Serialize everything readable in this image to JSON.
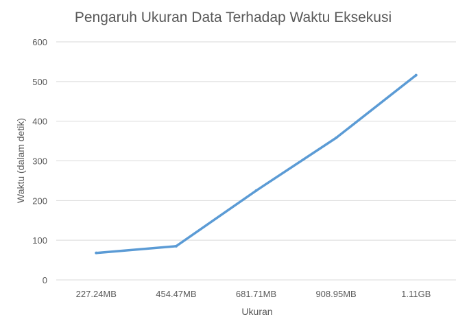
{
  "chart_data": {
    "type": "line",
    "title": "Pengaruh Ukuran Data Terhadap Waktu Eksekusi",
    "xlabel": "Ukuran",
    "ylabel": "Waktu (dalam detik)",
    "categories": [
      "227.24MB",
      "454.47MB",
      "681.71MB",
      "908.95MB",
      "1.11GB"
    ],
    "series": [
      {
        "values": [
          68,
          85,
          225,
          358,
          516
        ],
        "color": "#5B9BD5"
      }
    ],
    "ylim": [
      0,
      600
    ],
    "yticks": [
      0,
      100,
      200,
      300,
      400,
      500,
      600
    ],
    "grid": true,
    "gridColor": "#D9D9D9",
    "legend": "none"
  }
}
